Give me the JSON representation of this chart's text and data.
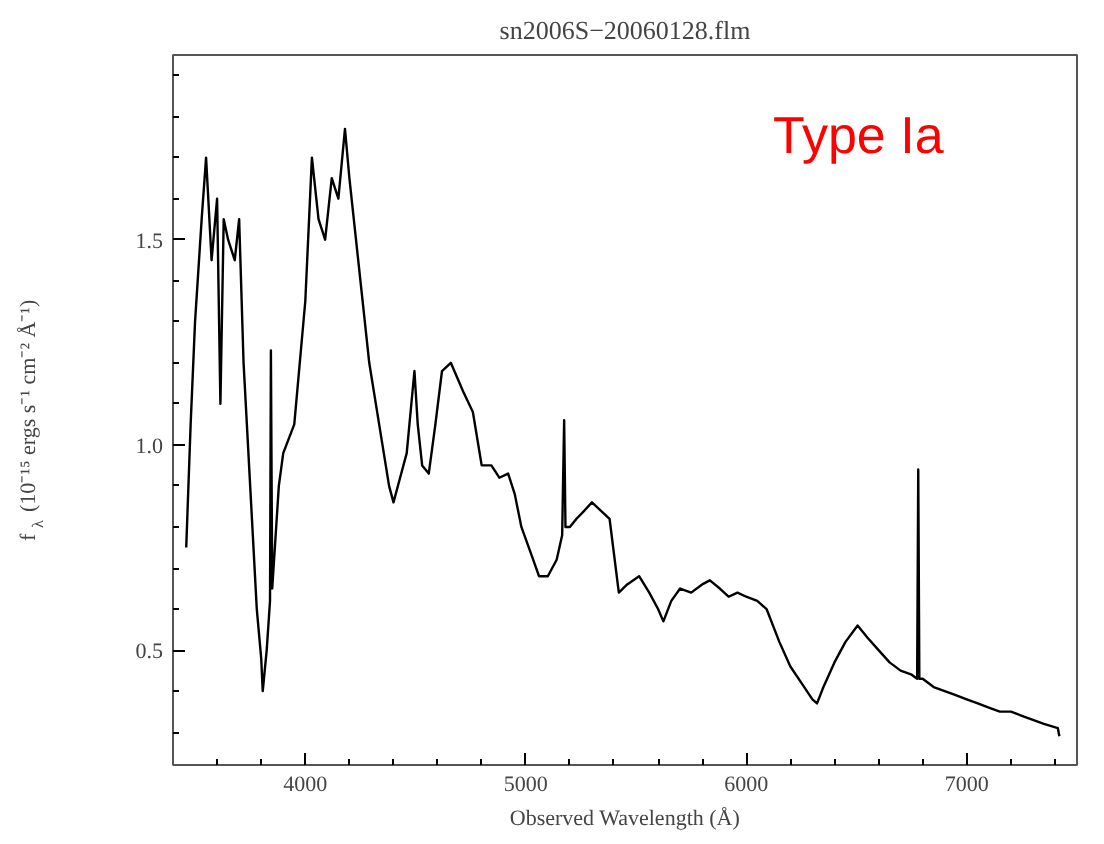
{
  "chart_data": {
    "type": "line",
    "title": "sn2006S−20060128.flm",
    "xlabel": "Observed Wavelength (Å)",
    "ylabel": "f$_{λ}$ (10⁻¹⁵ ergs s⁻¹ cm⁻² Å⁻¹)",
    "annotations": [
      "Type Ia"
    ],
    "xlim": [
      3400,
      7500
    ],
    "ylim": [
      0.22,
      1.95
    ],
    "xticks": [
      4000,
      5000,
      6000,
      7000
    ],
    "yticks": [
      0.5,
      {
        "value": 1.0,
        "label": "1.0"
      },
      1.5
    ],
    "grid": false,
    "legend": false,
    "series": [
      {
        "color": "#000000",
        "x": [
          3460,
          3480,
          3500,
          3530,
          3550,
          3575,
          3600,
          3615,
          3630,
          3650,
          3680,
          3700,
          3720,
          3750,
          3780,
          3800,
          3807,
          3825,
          3840,
          3844,
          3850,
          3880,
          3900,
          3950,
          4000,
          4030,
          4060,
          4090,
          4120,
          4150,
          4180,
          4200,
          4230,
          4260,
          4290,
          4320,
          4350,
          4380,
          4400,
          4430,
          4460,
          4495,
          4510,
          4530,
          4560,
          4590,
          4620,
          4660,
          4716,
          4760,
          4800,
          4844,
          4880,
          4920,
          4950,
          4980,
          5027,
          5060,
          5100,
          5140,
          5165,
          5174,
          5180,
          5200,
          5230,
          5266,
          5300,
          5340,
          5380,
          5422,
          5460,
          5514,
          5560,
          5600,
          5624,
          5660,
          5700,
          5750,
          5800,
          5835,
          5880,
          5920,
          5960,
          6000,
          6050,
          6092,
          6150,
          6200,
          6250,
          6300,
          6321,
          6350,
          6400,
          6450,
          6505,
          6550,
          6600,
          6650,
          6700,
          6750,
          6775,
          6780,
          6785,
          6800,
          6850,
          6900,
          6950,
          7000,
          7050,
          7100,
          7150,
          7200,
          7250,
          7300,
          7350,
          7413,
          7420
        ],
        "values": [
          0.75,
          1.05,
          1.3,
          1.55,
          1.7,
          1.45,
          1.6,
          1.1,
          1.55,
          1.5,
          1.45,
          1.55,
          1.2,
          0.9,
          0.6,
          0.48,
          0.4,
          0.5,
          0.62,
          1.23,
          0.65,
          0.9,
          0.98,
          1.05,
          1.35,
          1.7,
          1.55,
          1.5,
          1.65,
          1.6,
          1.77,
          1.65,
          1.5,
          1.35,
          1.2,
          1.1,
          1.0,
          0.9,
          0.86,
          0.92,
          0.98,
          1.18,
          1.05,
          0.95,
          0.93,
          1.05,
          1.18,
          1.2,
          1.13,
          1.08,
          0.95,
          0.95,
          0.92,
          0.93,
          0.88,
          0.8,
          0.73,
          0.68,
          0.68,
          0.72,
          0.78,
          1.06,
          0.8,
          0.8,
          0.82,
          0.84,
          0.86,
          0.84,
          0.82,
          0.64,
          0.66,
          0.68,
          0.64,
          0.6,
          0.57,
          0.62,
          0.65,
          0.64,
          0.66,
          0.67,
          0.65,
          0.63,
          0.64,
          0.63,
          0.62,
          0.6,
          0.52,
          0.46,
          0.42,
          0.38,
          0.37,
          0.41,
          0.47,
          0.52,
          0.56,
          0.53,
          0.5,
          0.47,
          0.45,
          0.44,
          0.43,
          0.94,
          0.43,
          0.43,
          0.41,
          0.4,
          0.39,
          0.38,
          0.37,
          0.36,
          0.35,
          0.35,
          0.34,
          0.33,
          0.32,
          0.31,
          0.29
        ]
      }
    ]
  }
}
